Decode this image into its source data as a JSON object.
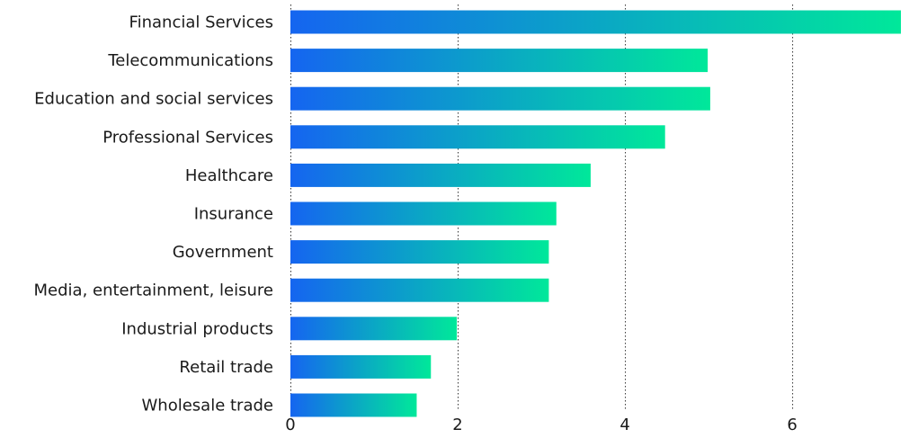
{
  "chart_data": {
    "type": "bar",
    "orientation": "horizontal",
    "categories": [
      "Financial Services",
      "Telecommunications",
      "Education and social services",
      "Professional Services",
      "Healthcare",
      "Insurance",
      "Government",
      "Media, entertainment, leisure",
      "Industrial products",
      "Retail trade",
      "Wholesale trade"
    ],
    "values": [
      7.3,
      4.99,
      5.02,
      4.48,
      3.59,
      3.18,
      3.09,
      3.09,
      1.99,
      1.68,
      1.51
    ],
    "xlim": [
      0,
      7.3
    ],
    "xticks": [
      0,
      2,
      4,
      6
    ],
    "grid": "vertical-dotted",
    "title": "",
    "xlabel": "",
    "ylabel": "",
    "colors": {
      "gradient_start": "#1565f0",
      "gradient_end": "#00e89a",
      "text": "#1a1a1a",
      "grid": "#333333"
    }
  }
}
